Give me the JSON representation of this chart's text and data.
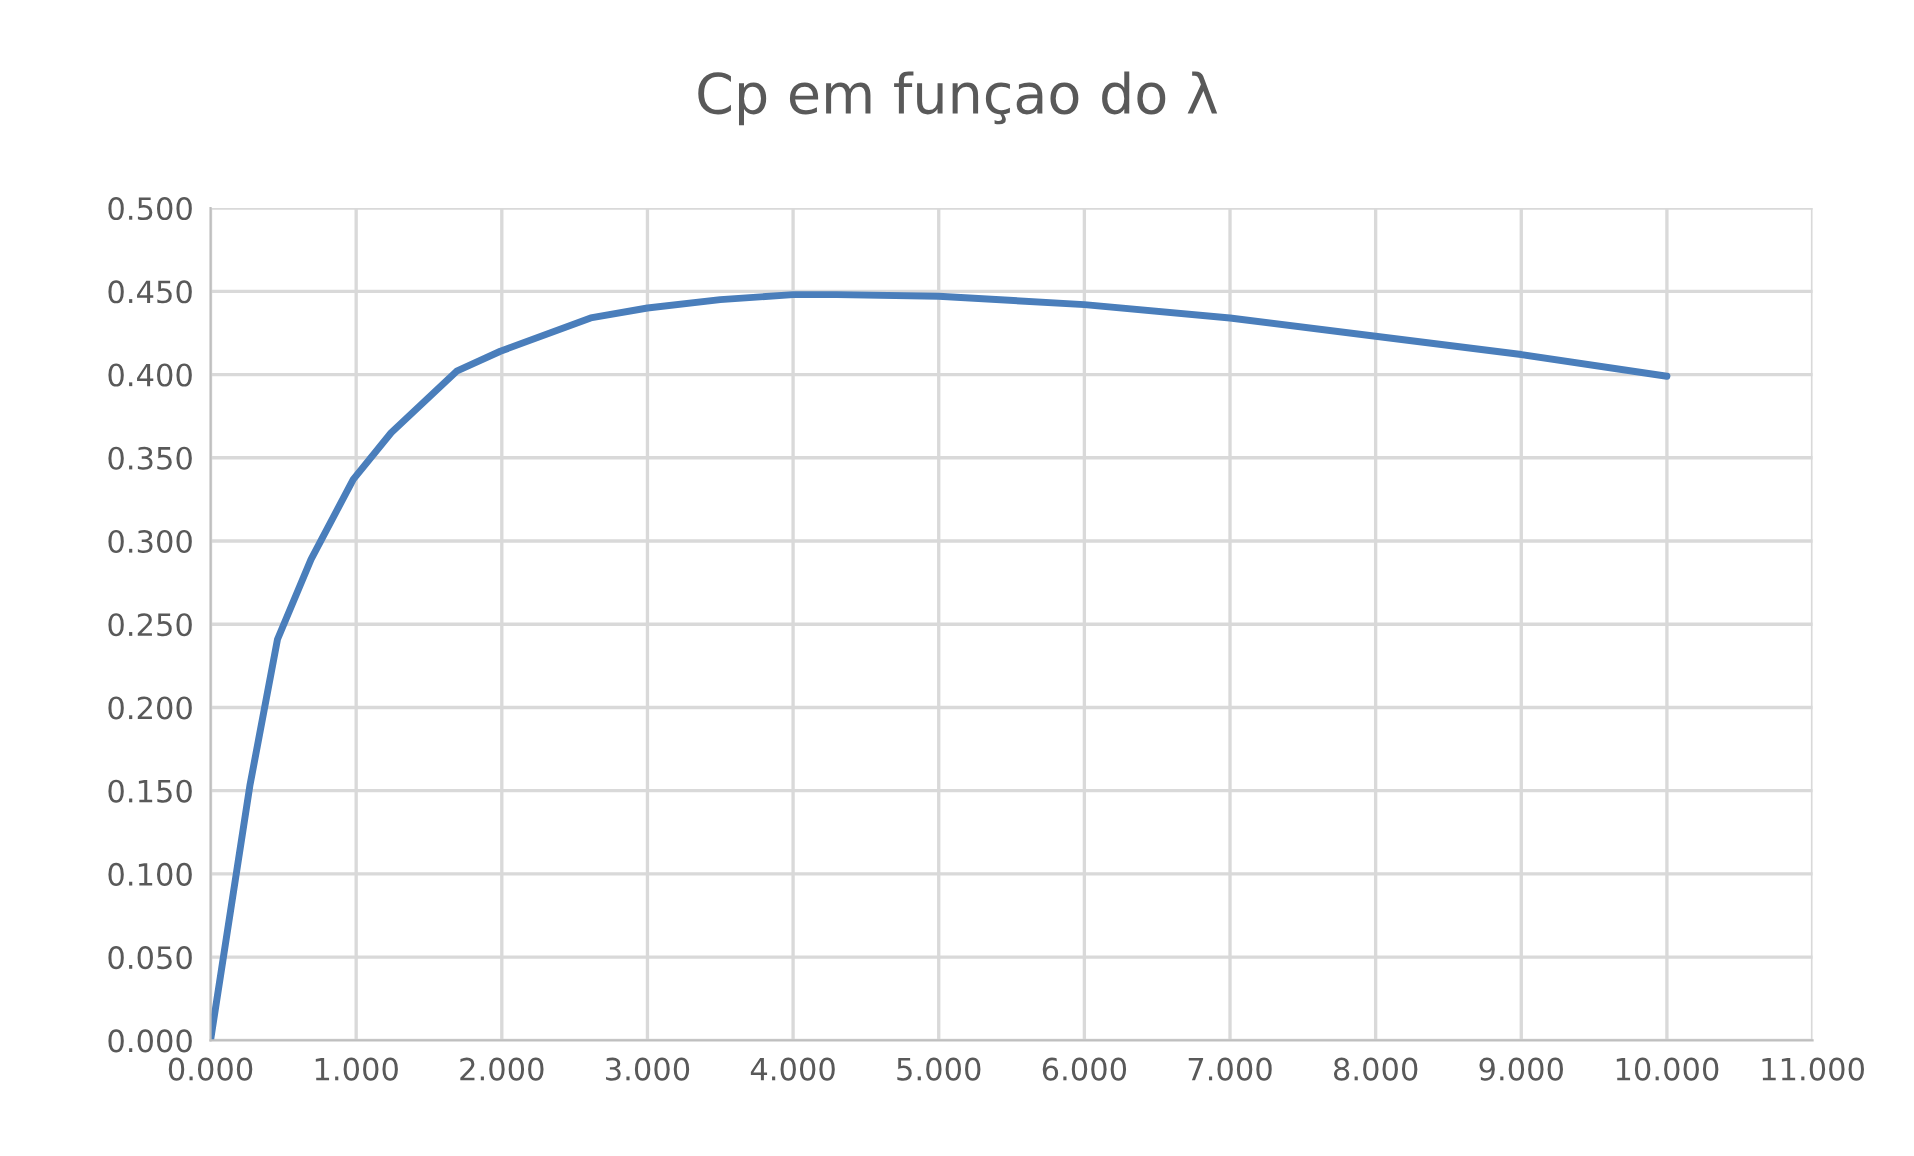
{
  "chart_data": {
    "type": "line",
    "title": "Cp em funçao do λ",
    "series": [
      {
        "color": "#4a7ebb",
        "x": [
          0,
          0.27,
          0.46,
          0.69,
          0.98,
          1.24,
          1.69,
          1.99,
          2.61,
          3.0,
          3.5,
          4.0,
          4.3,
          5.0,
          6.0,
          7.0,
          8.0,
          9.0,
          10.0
        ],
        "values": [
          0,
          0.153,
          0.241,
          0.289,
          0.337,
          0.365,
          0.402,
          0.414,
          0.434,
          0.44,
          0.445,
          0.448,
          0.448,
          0.447,
          0.442,
          0.434,
          0.423,
          0.412,
          0.399
        ]
      }
    ],
    "xlim": [
      0,
      11
    ],
    "ylim": [
      0,
      0.5
    ],
    "xticks": [
      {
        "value": 0,
        "label": "0.000"
      },
      {
        "value": 1,
        "label": "1.000"
      },
      {
        "value": 2,
        "label": "2.000"
      },
      {
        "value": 3,
        "label": "3.000"
      },
      {
        "value": 4,
        "label": "4.000"
      },
      {
        "value": 5,
        "label": "5.000"
      },
      {
        "value": 6,
        "label": "6.000"
      },
      {
        "value": 7,
        "label": "7.000"
      },
      {
        "value": 8,
        "label": "8.000"
      },
      {
        "value": 9,
        "label": "9.000"
      },
      {
        "value": 10,
        "label": "10.000"
      },
      {
        "value": 11,
        "label": "11.000"
      }
    ],
    "yticks": [
      {
        "value": 0,
        "label": "0.000"
      },
      {
        "value": 0.05,
        "label": "0.050"
      },
      {
        "value": 0.1,
        "label": "0.100"
      },
      {
        "value": 0.15,
        "label": "0.150"
      },
      {
        "value": 0.2,
        "label": "0.200"
      },
      {
        "value": 0.25,
        "label": "0.250"
      },
      {
        "value": 0.3,
        "label": "0.300"
      },
      {
        "value": 0.35,
        "label": "0.350"
      },
      {
        "value": 0.4,
        "label": "0.400"
      },
      {
        "value": 0.45,
        "label": "0.450"
      },
      {
        "value": 0.5,
        "label": "0.500"
      }
    ],
    "grid": true
  }
}
